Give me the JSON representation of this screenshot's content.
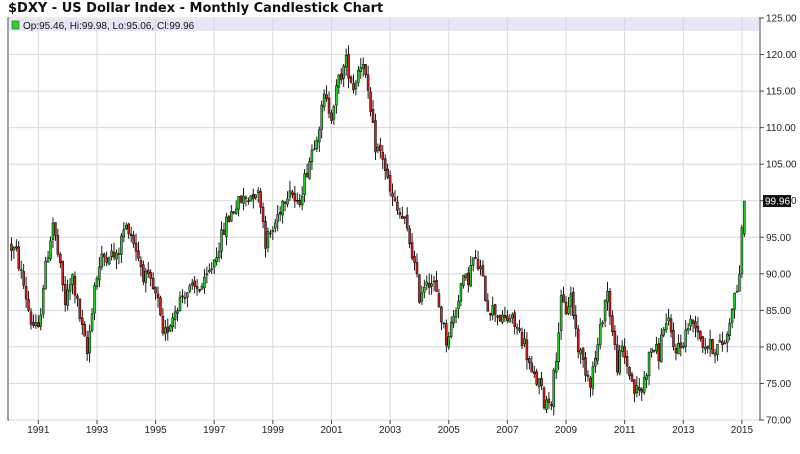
{
  "title": "$DXY - US Dollar Index - Monthly Candlestick Chart",
  "legend": {
    "label": "Op:95.46, Hi:99.98, Lo:95.06, Cl:99.96",
    "swatch_color": "#33cc33"
  },
  "last_value_label": "99.96",
  "colors": {
    "up": "#22cc22",
    "down": "#cc2222",
    "wick": "#000000",
    "grid": "#d8d8d8",
    "legend_band": "#e6e6f7",
    "last_value_bg": "#111111"
  },
  "chart_data": {
    "type": "candlestick",
    "interval": "monthly",
    "ylim": [
      70,
      125
    ],
    "y_ticks": [
      "70.00",
      "75.00",
      "80.00",
      "85.00",
      "90.00",
      "95.00",
      "100.00",
      "105.00",
      "110.00",
      "115.00",
      "120.00",
      "125.00"
    ],
    "x_ticks": [
      "1991",
      "1993",
      "1995",
      "1997",
      "1999",
      "2001",
      "2003",
      "2005",
      "2007",
      "2009",
      "2011",
      "2013",
      "2015"
    ],
    "grid": true,
    "legend_position": "top-left",
    "last_candle": {
      "date": "2015-02",
      "open": 95.46,
      "high": 99.98,
      "low": 95.06,
      "close": 99.96
    },
    "close_path": [
      [
        "1990-01",
        94.0
      ],
      [
        "1990-04",
        92.8
      ],
      [
        "1990-07",
        88.5
      ],
      [
        "1990-10",
        83.5
      ],
      [
        "1991-01",
        82.0
      ],
      [
        "1991-03",
        88.5
      ],
      [
        "1991-05",
        93.0
      ],
      [
        "1991-07",
        97.0
      ],
      [
        "1991-10",
        90.5
      ],
      [
        "1991-12",
        86.0
      ],
      [
        "1992-03",
        89.5
      ],
      [
        "1992-06",
        84.0
      ],
      [
        "1992-09",
        79.0
      ],
      [
        "1992-12",
        88.5
      ],
      [
        "1993-03",
        92.0
      ],
      [
        "1993-06",
        93.0
      ],
      [
        "1993-09",
        92.0
      ],
      [
        "1993-12",
        96.0
      ],
      [
        "1994-02",
        96.5
      ],
      [
        "1994-05",
        93.5
      ],
      [
        "1994-08",
        90.0
      ],
      [
        "1994-11",
        88.5
      ],
      [
        "1995-02",
        86.0
      ],
      [
        "1995-04",
        81.0
      ],
      [
        "1995-07",
        83.5
      ],
      [
        "1995-10",
        86.0
      ],
      [
        "1996-01",
        87.5
      ],
      [
        "1996-06",
        88.0
      ],
      [
        "1996-09",
        88.5
      ],
      [
        "1996-12",
        91.0
      ],
      [
        "1997-03",
        94.0
      ],
      [
        "1997-06",
        97.0
      ],
      [
        "1997-09",
        99.0
      ],
      [
        "1997-12",
        100.0
      ],
      [
        "1998-03",
        100.5
      ],
      [
        "1998-06",
        101.5
      ],
      [
        "1998-08",
        100.0
      ],
      [
        "1998-10",
        94.5
      ],
      [
        "1999-01",
        96.0
      ],
      [
        "1999-05",
        100.0
      ],
      [
        "1999-08",
        102.0
      ],
      [
        "1999-11",
        99.0
      ],
      [
        "2000-02",
        103.0
      ],
      [
        "2000-05",
        107.0
      ],
      [
        "2000-08",
        110.5
      ],
      [
        "2000-10",
        114.0
      ],
      [
        "2001-01",
        112.0
      ],
      [
        "2001-04",
        116.5
      ],
      [
        "2001-07",
        119.0
      ],
      [
        "2001-10",
        115.5
      ],
      [
        "2001-12",
        118.0
      ],
      [
        "2002-02",
        119.5
      ],
      [
        "2002-04",
        114.0
      ],
      [
        "2002-07",
        107.5
      ],
      [
        "2002-10",
        106.0
      ],
      [
        "2003-01",
        101.0
      ],
      [
        "2003-04",
        98.5
      ],
      [
        "2003-07",
        97.0
      ],
      [
        "2003-10",
        93.0
      ],
      [
        "2004-01",
        87.0
      ],
      [
        "2004-04",
        89.5
      ],
      [
        "2004-07",
        88.5
      ],
      [
        "2004-10",
        84.0
      ],
      [
        "2004-12",
        81.0
      ],
      [
        "2005-03",
        84.0
      ],
      [
        "2005-06",
        88.5
      ],
      [
        "2005-09",
        89.5
      ],
      [
        "2005-11",
        92.0
      ],
      [
        "2006-02",
        90.5
      ],
      [
        "2006-05",
        85.5
      ],
      [
        "2006-08",
        85.0
      ],
      [
        "2006-11",
        83.5
      ],
      [
        "2007-02",
        84.0
      ],
      [
        "2007-05",
        82.5
      ],
      [
        "2007-08",
        80.5
      ],
      [
        "2007-11",
        76.0
      ],
      [
        "2008-02",
        75.0
      ],
      [
        "2008-04",
        72.5
      ],
      [
        "2008-07",
        73.0
      ],
      [
        "2008-09",
        79.0
      ],
      [
        "2008-11",
        86.0
      ],
      [
        "2009-01",
        85.0
      ],
      [
        "2009-03",
        87.0
      ],
      [
        "2009-06",
        80.0
      ],
      [
        "2009-09",
        77.0
      ],
      [
        "2009-11",
        75.5
      ],
      [
        "2010-02",
        80.0
      ],
      [
        "2010-05",
        86.5
      ],
      [
        "2010-06",
        87.5
      ],
      [
        "2010-08",
        82.0
      ],
      [
        "2010-10",
        77.5
      ],
      [
        "2010-12",
        79.5
      ],
      [
        "2011-03",
        76.5
      ],
      [
        "2011-05",
        74.0
      ],
      [
        "2011-08",
        74.0
      ],
      [
        "2011-10",
        77.0
      ],
      [
        "2011-12",
        80.0
      ],
      [
        "2012-03",
        79.0
      ],
      [
        "2012-05",
        83.0
      ],
      [
        "2012-07",
        83.0
      ],
      [
        "2012-09",
        80.0
      ],
      [
        "2012-12",
        80.0
      ],
      [
        "2013-03",
        83.0
      ],
      [
        "2013-06",
        83.5
      ],
      [
        "2013-09",
        80.5
      ],
      [
        "2013-12",
        80.0
      ],
      [
        "2014-03",
        80.0
      ],
      [
        "2014-05",
        80.5
      ],
      [
        "2014-07",
        81.5
      ],
      [
        "2014-09",
        86.0
      ],
      [
        "2014-11",
        88.0
      ],
      [
        "2014-12",
        90.5
      ],
      [
        "2015-01",
        95.3
      ],
      [
        "2015-02",
        99.96
      ]
    ]
  }
}
